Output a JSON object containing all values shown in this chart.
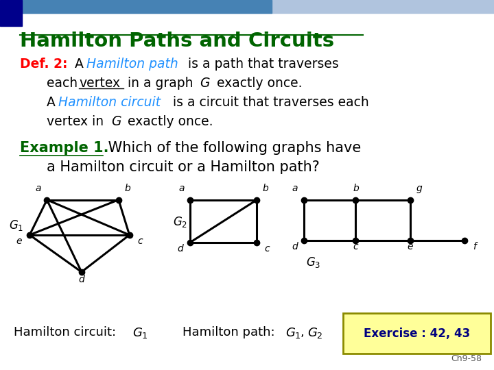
{
  "title": "Hamilton Paths and Circuits",
  "title_color": "#006400",
  "bg_color": "#ffffff",
  "def_label": "Def. 2:",
  "def_label_color": "#FF0000",
  "def_hamilton_path": "Hamilton path",
  "def_hamilton_path_color": "#1E90FF",
  "def_hamilton_circuit": "Hamilton circuit",
  "def_hamilton_circuit_color": "#1E90FF",
  "example_label": "Example 1.",
  "example_label_color": "#006400",
  "exercise_label": "Exercise : 42, 43",
  "exercise_bg": "#FFFF99",
  "exercise_border": "#8B8B00",
  "chapter_ref": "Ch9-58"
}
